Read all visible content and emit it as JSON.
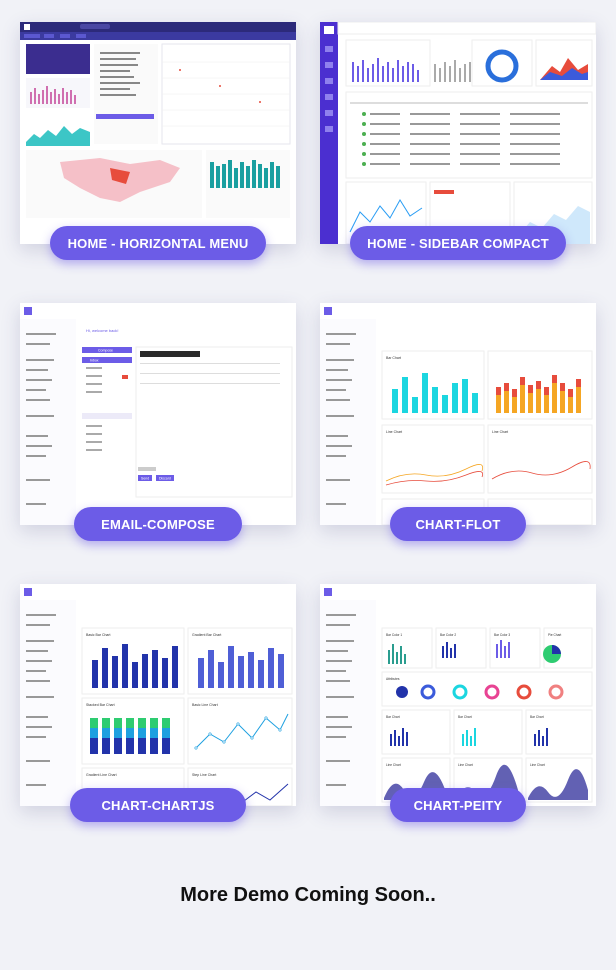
{
  "demos": [
    {
      "label": "HOME - HORIZONTAL MENU"
    },
    {
      "label": "HOME - SIDEBAR COMPACT"
    },
    {
      "label": "EMAIL-COMPOSE"
    },
    {
      "label": "CHART-FLOT"
    },
    {
      "label": "CHART-CHARTJS"
    },
    {
      "label": "CHART-PEITY"
    }
  ],
  "brand": "METROADMIN",
  "screens": {
    "email_welcome": "Hi, welcome back!",
    "compose_label": "Compose",
    "inbox_label": "Inbox",
    "send_label": "Send",
    "discard_label": "Discard",
    "flot_bar_title": "Bar Chart",
    "flot_line_title": "Line Chart",
    "chartjs_titles": [
      "Basic Bar Chart",
      "Gradient Bar Chart",
      "Stacked Bar Chart",
      "Basic Line Chart",
      "Gradient Line Chart",
      "Step Line Chart"
    ],
    "peity_titles": [
      "Bar Color 1",
      "Bar Color 2",
      "Bar Color 3",
      "Pie Chart",
      "Attributes",
      "Bar Chart",
      "Line Chart"
    ]
  },
  "footer_text": "More Demo Coming Soon..",
  "colors": {
    "accent": "#6c5ce7",
    "sidebar_dark": "#2c2a7a",
    "cyan": "#1bd6e0",
    "orange": "#f5a623",
    "red": "#e74c3c",
    "navy": "#2233aa"
  }
}
